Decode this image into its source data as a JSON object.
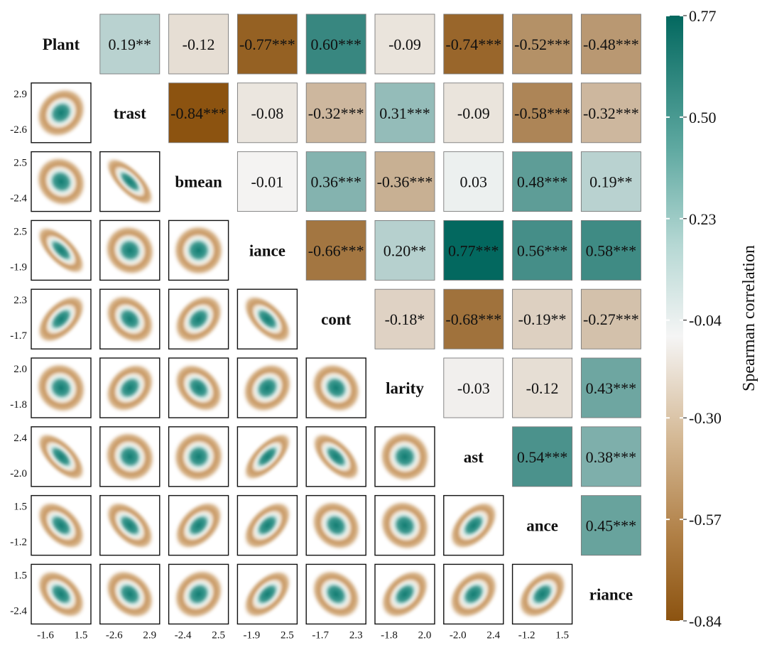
{
  "chart_data": {
    "type": "heatmap",
    "subtype": "correlation-matrix-pairs-plot",
    "variables": [
      "Plant",
      "trast",
      "bmean",
      "iance",
      "cont",
      "larity",
      "ast",
      "ance",
      "riance"
    ],
    "upper_triangle_correlations": [
      [
        null,
        "0.19**",
        "-0.12",
        "-0.77***",
        "0.60***",
        "-0.09",
        "-0.74***",
        "-0.52***",
        "-0.48***"
      ],
      [
        null,
        null,
        "-0.84***",
        "-0.08",
        "-0.32***",
        "0.31***",
        "-0.09",
        "-0.58***",
        "-0.32***"
      ],
      [
        null,
        null,
        null,
        "-0.01",
        "0.36***",
        "-0.36***",
        "0.03",
        "0.48***",
        "0.19**"
      ],
      [
        null,
        null,
        null,
        null,
        "-0.66***",
        "0.20**",
        "0.77***",
        "0.56***",
        "0.58***"
      ],
      [
        null,
        null,
        null,
        null,
        null,
        "-0.18*",
        "-0.68***",
        "-0.19**",
        "-0.27***"
      ],
      [
        null,
        null,
        null,
        null,
        null,
        null,
        "-0.03",
        "-0.12",
        "0.43***"
      ],
      [
        null,
        null,
        null,
        null,
        null,
        null,
        null,
        "0.54***",
        "0.38***"
      ],
      [
        null,
        null,
        null,
        null,
        null,
        null,
        null,
        null,
        "0.45***"
      ],
      [
        null,
        null,
        null,
        null,
        null,
        null,
        null,
        null,
        null
      ]
    ],
    "row_axis_ticks": [
      null,
      [
        "2.9",
        "-2.6"
      ],
      [
        "2.5",
        "-2.4"
      ],
      [
        "2.5",
        "-1.9"
      ],
      [
        "2.3",
        "-1.7"
      ],
      [
        "2.0",
        "-1.8"
      ],
      [
        "2.4",
        "-2.0"
      ],
      [
        "1.5",
        "-1.2"
      ],
      [
        "1.5",
        "-2.4"
      ]
    ],
    "col_axis_ticks": [
      [
        "-1.6",
        "1.5"
      ],
      [
        "-2.6",
        "2.9"
      ],
      [
        "-2.4",
        "2.5"
      ],
      [
        "-1.9",
        "2.5"
      ],
      [
        "-1.7",
        "2.3"
      ],
      [
        "-1.8",
        "2.0"
      ],
      [
        "-2.0",
        "2.4"
      ],
      [
        "-1.2",
        "1.5"
      ],
      null
    ],
    "colorbar": {
      "label": "Spearman correlation",
      "range": [
        -0.84,
        0.77
      ],
      "ticks": [
        "0.77",
        "0.50",
        "0.23",
        "-0.04",
        "-0.30",
        "-0.57",
        "-0.84"
      ],
      "low_color": "#8c5310",
      "mid_color": "#f5f5f5",
      "high_color": "#03685f"
    }
  }
}
